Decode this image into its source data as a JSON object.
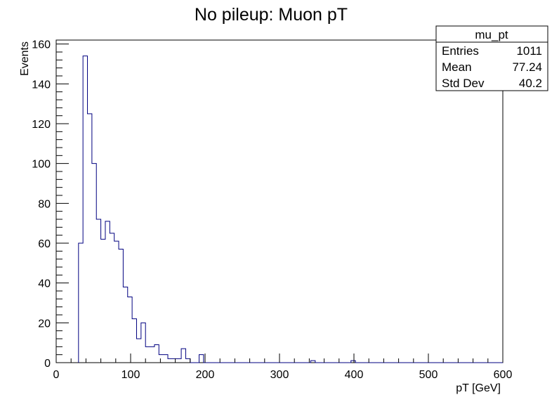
{
  "chart_data": {
    "type": "histogram",
    "title": "No pileup:  Muon pT",
    "xlabel": "pT [GeV]",
    "ylabel": "Events",
    "xlim": [
      0,
      600
    ],
    "ylim": [
      0,
      162
    ],
    "x_ticks": [
      0,
      100,
      200,
      300,
      400,
      500,
      600
    ],
    "y_ticks": [
      0,
      20,
      40,
      60,
      80,
      100,
      120,
      140,
      160
    ],
    "bin_width": 6,
    "bin_start": 0,
    "values": [
      0,
      0,
      0,
      0,
      0,
      60,
      154,
      125,
      100,
      72,
      62,
      71,
      65,
      61,
      57,
      38,
      33,
      22,
      12,
      20,
      8,
      8,
      9,
      4,
      4,
      2,
      2,
      2,
      7,
      2,
      0,
      0,
      4,
      0,
      0,
      0,
      0,
      0,
      0,
      0,
      0,
      0,
      0,
      0,
      0,
      0,
      0,
      0,
      0,
      0,
      0,
      0,
      0,
      0,
      0,
      0,
      0,
      1,
      0,
      0,
      0,
      0,
      0,
      0,
      0,
      0,
      1,
      0,
      0,
      0,
      0,
      0,
      0,
      0,
      0,
      0,
      0,
      0,
      0,
      0,
      0,
      0,
      0,
      0,
      0,
      0,
      0,
      0,
      0,
      0,
      0,
      0,
      0,
      0,
      0,
      0,
      0,
      0,
      0,
      0
    ],
    "grid": false,
    "line_color": "#000080",
    "stats": {
      "name": "mu_pt",
      "rows": [
        {
          "label": "Entries",
          "value": "1011"
        },
        {
          "label": "Mean",
          "value": "77.24"
        },
        {
          "label": "Std Dev",
          "value": "40.2"
        }
      ]
    }
  }
}
